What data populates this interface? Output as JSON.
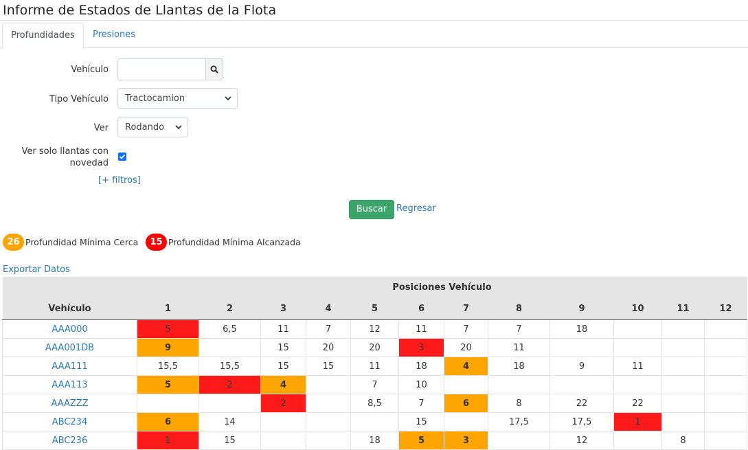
{
  "page_title": "Informe de Estados de Llantas de la Flota",
  "tabs": [
    {
      "label": "Profundidades",
      "active": true
    },
    {
      "label": "Presiones",
      "active": false
    }
  ],
  "form": {
    "vehiculo_label": "Vehículo",
    "vehiculo_value": "",
    "tipo_label": "Tipo Vehículo",
    "tipo_value": "Tractocamion",
    "ver_label": "Ver",
    "ver_value": "Rodando",
    "solo_label": "Ver solo llantas con novedad",
    "solo_checked": true,
    "filters_link": "[+ filtros]",
    "buscar_label": "Buscar",
    "regresar_label": "Regresar"
  },
  "legend": [
    {
      "value": "26",
      "text": "Profundidad Mínima Cerca",
      "color": "#ffa500"
    },
    {
      "value": "15",
      "text": "Profundidad Mínima Alcanzada",
      "color": "#ff0000"
    }
  ],
  "export_label": "Exportar Datos",
  "table": {
    "group_header": "Posiciones Vehículo",
    "vehicle_header": "Vehículo",
    "positions": [
      "1",
      "2",
      "3",
      "4",
      "5",
      "6",
      "7",
      "8",
      "9",
      "10",
      "11",
      "12"
    ],
    "rows": [
      {
        "vehicle": "AAA000",
        "cells": [
          {
            "v": "5",
            "s": "red"
          },
          {
            "v": "6,5"
          },
          {
            "v": "11"
          },
          {
            "v": "7"
          },
          {
            "v": "12"
          },
          {
            "v": "11"
          },
          {
            "v": "7"
          },
          {
            "v": "7"
          },
          {
            "v": "18"
          },
          {
            "v": ""
          },
          {
            "v": ""
          },
          {
            "v": ""
          }
        ]
      },
      {
        "vehicle": "AAA001DB",
        "cells": [
          {
            "v": "9",
            "s": "orange"
          },
          {
            "v": ""
          },
          {
            "v": "15"
          },
          {
            "v": "20"
          },
          {
            "v": "20"
          },
          {
            "v": "3",
            "s": "red"
          },
          {
            "v": "20"
          },
          {
            "v": "11"
          },
          {
            "v": ""
          },
          {
            "v": ""
          },
          {
            "v": ""
          },
          {
            "v": ""
          }
        ]
      },
      {
        "vehicle": "AAA111",
        "cells": [
          {
            "v": "15,5"
          },
          {
            "v": "15,5"
          },
          {
            "v": "15"
          },
          {
            "v": "15"
          },
          {
            "v": "11"
          },
          {
            "v": "18"
          },
          {
            "v": "4",
            "s": "orange"
          },
          {
            "v": "18"
          },
          {
            "v": "9"
          },
          {
            "v": "11"
          },
          {
            "v": ""
          },
          {
            "v": ""
          }
        ]
      },
      {
        "vehicle": "AAA113",
        "cells": [
          {
            "v": "5",
            "s": "orange"
          },
          {
            "v": "2",
            "s": "red"
          },
          {
            "v": "4",
            "s": "orange"
          },
          {
            "v": ""
          },
          {
            "v": "7"
          },
          {
            "v": "10"
          },
          {
            "v": ""
          },
          {
            "v": ""
          },
          {
            "v": ""
          },
          {
            "v": ""
          },
          {
            "v": ""
          },
          {
            "v": ""
          }
        ]
      },
      {
        "vehicle": "AAAZZZ",
        "cells": [
          {
            "v": ""
          },
          {
            "v": ""
          },
          {
            "v": "2",
            "s": "red"
          },
          {
            "v": ""
          },
          {
            "v": "8,5"
          },
          {
            "v": "7"
          },
          {
            "v": "6",
            "s": "orange"
          },
          {
            "v": "8"
          },
          {
            "v": "22"
          },
          {
            "v": "22"
          },
          {
            "v": ""
          },
          {
            "v": ""
          }
        ]
      },
      {
        "vehicle": "ABC234",
        "cells": [
          {
            "v": "6",
            "s": "orange"
          },
          {
            "v": "14"
          },
          {
            "v": ""
          },
          {
            "v": ""
          },
          {
            "v": ""
          },
          {
            "v": "15"
          },
          {
            "v": ""
          },
          {
            "v": "17,5"
          },
          {
            "v": "17,5"
          },
          {
            "v": "1",
            "s": "red"
          },
          {
            "v": ""
          },
          {
            "v": ""
          }
        ]
      },
      {
        "vehicle": "ABC236",
        "cells": [
          {
            "v": "1",
            "s": "red"
          },
          {
            "v": "15"
          },
          {
            "v": ""
          },
          {
            "v": ""
          },
          {
            "v": "18"
          },
          {
            "v": "5",
            "s": "orange"
          },
          {
            "v": "3",
            "s": "orange"
          },
          {
            "v": ""
          },
          {
            "v": "12"
          },
          {
            "v": ""
          },
          {
            "v": "8"
          },
          {
            "v": ""
          }
        ]
      }
    ]
  }
}
